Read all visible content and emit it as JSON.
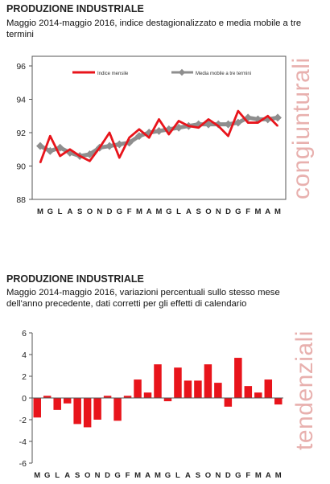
{
  "panels": [
    {
      "title": "PRODUZIONE INDUSTRIALE",
      "subtitle": "Maggio 2014-maggio 2016, indice destagionalizzato e media mobile a tre termini",
      "side_label": "congiunturali"
    },
    {
      "title": "PRODUZIONE INDUSTRIALE",
      "subtitle": "Maggio 2014-maggio 2016, variazioni percentuali sullo stesso mese dell'anno precedente, dati corretti per gli effetti di calendario",
      "side_label": "tendenziali"
    }
  ],
  "colors": {
    "red": "#e8141b",
    "grey": "#8e8e8e",
    "axis": "#555555"
  },
  "chart_data": [
    {
      "type": "line",
      "categories": [
        "M",
        "G",
        "L",
        "A",
        "S",
        "O",
        "N",
        "D",
        "G",
        "F",
        "M",
        "A",
        "M",
        "G",
        "L",
        "A",
        "S",
        "O",
        "N",
        "D",
        "G",
        "F",
        "M",
        "A",
        "M"
      ],
      "ylim": [
        88,
        96
      ],
      "yticks": [
        88,
        90,
        92,
        94,
        96
      ],
      "legend_position": "top",
      "series": [
        {
          "name": "Indice mensile",
          "color": "#e8141b",
          "values": [
            90.2,
            91.8,
            90.6,
            91.0,
            90.6,
            90.3,
            91.1,
            92.0,
            90.5,
            91.7,
            92.2,
            91.7,
            92.8,
            91.9,
            92.7,
            92.4,
            92.3,
            92.8,
            92.4,
            91.8,
            93.3,
            92.6,
            92.6,
            93.0,
            92.4
          ]
        },
        {
          "name": "Media mobile a tre termini",
          "color": "#8e8e8e",
          "values": [
            91.2,
            90.9,
            91.1,
            90.8,
            90.6,
            90.7,
            91.1,
            91.2,
            91.3,
            91.4,
            91.8,
            92.0,
            92.1,
            92.2,
            92.3,
            92.4,
            92.5,
            92.5,
            92.5,
            92.5,
            92.6,
            92.9,
            92.8,
            92.8,
            92.9
          ]
        }
      ]
    },
    {
      "type": "bar",
      "categories": [
        "M",
        "G",
        "L",
        "A",
        "S",
        "O",
        "N",
        "D",
        "G",
        "F",
        "M",
        "A",
        "M",
        "G",
        "L",
        "A",
        "S",
        "O",
        "N",
        "D",
        "G",
        "F",
        "M",
        "A",
        "M"
      ],
      "ylim": [
        -6,
        6
      ],
      "yticks": [
        -6,
        -4,
        -2,
        0,
        2,
        4,
        6
      ],
      "series": [
        {
          "color": "#e8141b",
          "values": [
            -1.8,
            0.2,
            -1.1,
            -0.5,
            -2.4,
            -2.7,
            -2.0,
            0.2,
            -2.1,
            0.2,
            1.7,
            0.5,
            3.1,
            -0.3,
            2.8,
            1.6,
            1.6,
            3.1,
            1.4,
            -0.8,
            3.7,
            1.1,
            0.5,
            1.7,
            -0.6
          ]
        }
      ]
    }
  ]
}
